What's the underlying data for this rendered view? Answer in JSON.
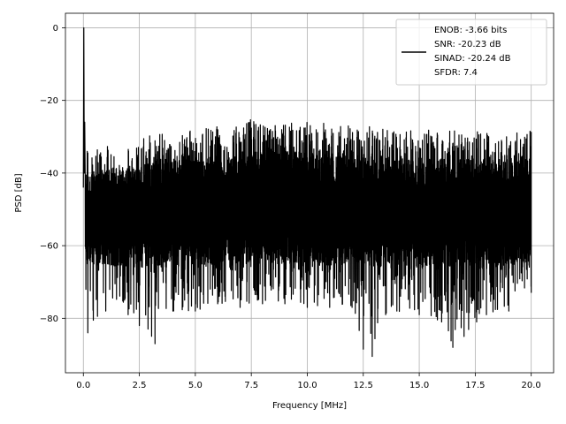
{
  "chart_data": {
    "type": "line",
    "xlabel": "Frequency [MHz]",
    "ylabel": "PSD [dB]",
    "xlim": [
      -0.8,
      21.0
    ],
    "ylim": [
      -95,
      4
    ],
    "x_ticks": [
      0.0,
      2.5,
      5.0,
      7.5,
      10.0,
      12.5,
      15.0,
      17.5,
      20.0
    ],
    "x_tick_labels": [
      "0.0",
      "2.5",
      "5.0",
      "7.5",
      "10.0",
      "12.5",
      "15.0",
      "17.5",
      "20.0"
    ],
    "y_ticks": [
      0,
      -20,
      -40,
      -60,
      -80
    ],
    "y_tick_labels": [
      "0",
      "−20",
      "−40",
      "−60",
      "−80"
    ],
    "grid": true,
    "legend_position": "top-right",
    "series": [
      {
        "name": "ENOB: -3.66 bits\nSNR: -20.23 dB\nSINAD: -20.24 dB\nSFDR: 7.4",
        "color": "#000000",
        "x_range": [
          0,
          20
        ],
        "peak": {
          "x": 0.02,
          "y": 0
        },
        "upper_envelope": [
          [
            0.05,
            -25
          ],
          [
            0.1,
            -33
          ],
          [
            0.5,
            -33
          ],
          [
            1.0,
            -32
          ],
          [
            2.0,
            -31
          ],
          [
            2.5,
            -30.5
          ],
          [
            3.0,
            -29.5
          ],
          [
            4.0,
            -28.5
          ],
          [
            5.0,
            -28
          ],
          [
            6.0,
            -27
          ],
          [
            7.0,
            -27
          ],
          [
            7.5,
            -25
          ],
          [
            8.0,
            -26.5
          ],
          [
            9.0,
            -26.5
          ],
          [
            10.0,
            -25.5
          ],
          [
            11.0,
            -26.5
          ],
          [
            12.0,
            -26.5
          ],
          [
            13.0,
            -27
          ],
          [
            14.0,
            -27
          ],
          [
            15.0,
            -27.5
          ],
          [
            16.0,
            -28
          ],
          [
            17.0,
            -28
          ],
          [
            18.0,
            -28.5
          ],
          [
            19.0,
            -28.5
          ],
          [
            20.0,
            -28
          ]
        ],
        "lower_envelope": [
          [
            0.1,
            -73
          ],
          [
            0.2,
            -84
          ],
          [
            1.0,
            -78
          ],
          [
            2.0,
            -79
          ],
          [
            2.5,
            -82
          ],
          [
            3.2,
            -87
          ],
          [
            4.0,
            -78
          ],
          [
            5.0,
            -78
          ],
          [
            6.0,
            -76
          ],
          [
            7.0,
            -77
          ],
          [
            8.0,
            -76
          ],
          [
            9.0,
            -76
          ],
          [
            10.0,
            -77
          ],
          [
            11.0,
            -77
          ],
          [
            12.0,
            -77
          ],
          [
            12.5,
            -88.5
          ],
          [
            12.9,
            -90.5
          ],
          [
            13.5,
            -79
          ],
          [
            14.0,
            -78
          ],
          [
            15.0,
            -79
          ],
          [
            16.0,
            -81
          ],
          [
            16.5,
            -88
          ],
          [
            17.0,
            -85
          ],
          [
            18.0,
            -79
          ],
          [
            19.0,
            -78
          ],
          [
            20.0,
            -73
          ]
        ],
        "band_top": [
          [
            0.1,
            -40
          ],
          [
            2.0,
            -38
          ],
          [
            5.0,
            -36
          ],
          [
            8.0,
            -34
          ],
          [
            10.0,
            -34
          ],
          [
            13.0,
            -35
          ],
          [
            16.0,
            -36
          ],
          [
            20.0,
            -36
          ]
        ],
        "band_bottom": [
          [
            0.1,
            -65
          ],
          [
            2.0,
            -66
          ],
          [
            5.0,
            -66
          ],
          [
            8.0,
            -65
          ],
          [
            10.0,
            -65
          ],
          [
            13.0,
            -66
          ],
          [
            16.0,
            -67
          ],
          [
            20.0,
            -65
          ]
        ]
      }
    ]
  }
}
